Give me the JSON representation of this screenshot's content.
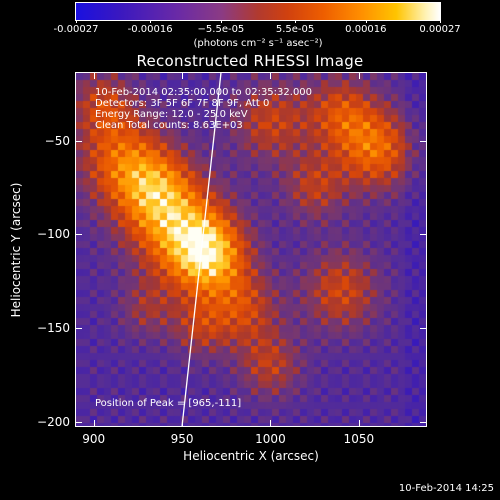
{
  "colorbar": {
    "tick_labels": [
      "-0.00027",
      "-0.00016",
      "−5.5e-05",
      "5.5e-05",
      "0.00016",
      "0.00027"
    ],
    "tick_values": [
      -0.00027,
      -0.00016,
      -5.5e-05,
      5.5e-05,
      0.00016,
      0.00027
    ],
    "units": "(photons cm⁻² s⁻¹ asec⁻²)"
  },
  "chart_data": {
    "type": "heatmap",
    "title": "Reconstructed RHESSI Image",
    "xlabel": "Heliocentric X (arcsec)",
    "ylabel": "Heliocentric Y (arcsec)",
    "xlim": [
      890,
      1088
    ],
    "ylim": [
      -202,
      -14
    ],
    "x_ticks": [
      900,
      950,
      1000,
      1050
    ],
    "y_ticks": [
      -50,
      -100,
      -150,
      -200
    ],
    "zlim": [
      -0.00027,
      0.00027
    ],
    "peak": [
      965,
      -111
    ],
    "limb_line": [
      [
        950,
        -202
      ],
      [
        972,
        -14
      ]
    ],
    "annotations": [
      "10-Feb-2014 02:35:00.000 to 02:35:32.000",
      "Detectors: 3F 5F 6F 7F 8F 9F, Att 0",
      "Energy Range: 12.0 - 25.0 keV",
      "Clean    Total counts: 8.63E+03"
    ],
    "peak_label": "Position of Peak = [965,-111]"
  },
  "footer": {
    "timestamp": "10-Feb-2014 14:25"
  }
}
